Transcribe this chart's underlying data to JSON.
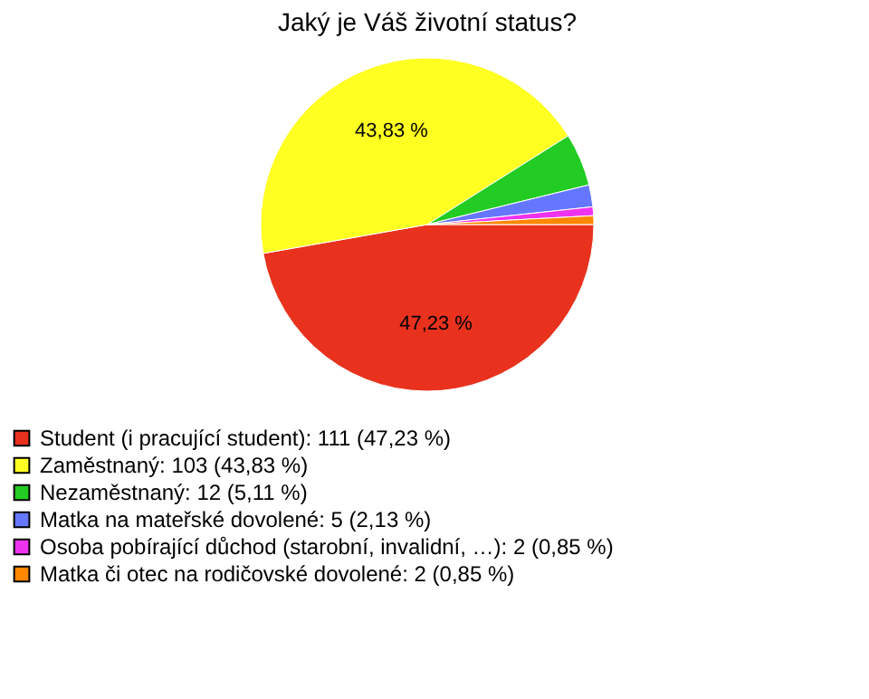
{
  "chart_data": {
    "type": "pie",
    "title": "Jaký je Váš životní status?",
    "categories": [
      "Student (i pracující student): 111 (47,23 %)",
      "Zaměstnaný: 103 (43,83 %)",
      "Nezaměstnaný: 12 (5,11 %)",
      "Matka na mateřské dovolené: 5 (2,13 %)",
      "Osoba pobírající důchod (starobní, invalidní, …): 2 (0,85 %)",
      "Matka či otec na rodičovské dovolené: 2 (0,85 %)"
    ],
    "values": [
      47.23,
      43.83,
      5.11,
      2.13,
      0.85,
      0.85
    ],
    "colors": [
      "#e8321e",
      "#ffff22",
      "#22cc22",
      "#6677ff",
      "#ee33ee",
      "#ff8800"
    ],
    "value_labels": [
      "47,23 %",
      "43,83 %",
      null,
      null,
      null,
      null
    ],
    "legend": "bottom left"
  }
}
